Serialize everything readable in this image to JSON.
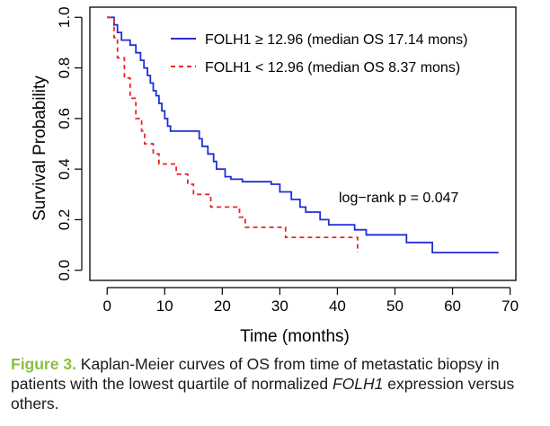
{
  "chart_data": {
    "type": "line",
    "xlabel": "Time (months)",
    "ylabel": "Survival Probability",
    "xlim": [
      -3,
      71
    ],
    "ylim": [
      -0.04,
      1.04
    ],
    "x_ticks": [
      "0",
      "10",
      "20",
      "30",
      "40",
      "50",
      "60",
      "70"
    ],
    "y_ticks": [
      "0.0",
      "0.2",
      "0.4",
      "0.6",
      "0.8",
      "1.0"
    ],
    "grid": false,
    "legend_position": "top-right",
    "annotation": "log−rank p = 0.047",
    "series": [
      {
        "name": "FOLH1 ≥ 12.96 (median OS 17.14 mons)",
        "color": "#1f2fd6",
        "style": "solid",
        "points": [
          [
            0,
            1.0
          ],
          [
            1.2,
            1.0
          ],
          [
            1.2,
            0.97
          ],
          [
            1.8,
            0.97
          ],
          [
            1.8,
            0.94
          ],
          [
            2.5,
            0.94
          ],
          [
            2.5,
            0.91
          ],
          [
            4,
            0.91
          ],
          [
            4,
            0.89
          ],
          [
            5,
            0.89
          ],
          [
            5,
            0.86
          ],
          [
            5.8,
            0.86
          ],
          [
            5.8,
            0.83
          ],
          [
            6.4,
            0.83
          ],
          [
            6.4,
            0.8
          ],
          [
            7,
            0.8
          ],
          [
            7,
            0.77
          ],
          [
            7.5,
            0.77
          ],
          [
            7.5,
            0.74
          ],
          [
            8,
            0.74
          ],
          [
            8,
            0.71
          ],
          [
            8.5,
            0.71
          ],
          [
            8.5,
            0.69
          ],
          [
            9,
            0.69
          ],
          [
            9,
            0.66
          ],
          [
            9.5,
            0.66
          ],
          [
            9.5,
            0.63
          ],
          [
            10,
            0.63
          ],
          [
            10,
            0.6
          ],
          [
            10.5,
            0.6
          ],
          [
            10.5,
            0.57
          ],
          [
            11,
            0.57
          ],
          [
            11,
            0.55
          ],
          [
            16,
            0.55
          ],
          [
            16,
            0.52
          ],
          [
            16.5,
            0.52
          ],
          [
            16.5,
            0.49
          ],
          [
            17.5,
            0.49
          ],
          [
            17.5,
            0.46
          ],
          [
            18.5,
            0.46
          ],
          [
            18.5,
            0.43
          ],
          [
            19,
            0.43
          ],
          [
            19,
            0.4
          ],
          [
            20.5,
            0.4
          ],
          [
            20.5,
            0.37
          ],
          [
            21.5,
            0.37
          ],
          [
            21.5,
            0.36
          ],
          [
            23.5,
            0.36
          ],
          [
            23.5,
            0.35
          ],
          [
            28.5,
            0.35
          ],
          [
            28.5,
            0.34
          ],
          [
            30,
            0.34
          ],
          [
            30,
            0.31
          ],
          [
            32,
            0.31
          ],
          [
            32,
            0.28
          ],
          [
            33.5,
            0.28
          ],
          [
            33.5,
            0.25
          ],
          [
            34.5,
            0.25
          ],
          [
            34.5,
            0.23
          ],
          [
            37,
            0.23
          ],
          [
            37,
            0.2
          ],
          [
            38.5,
            0.2
          ],
          [
            38.5,
            0.18
          ],
          [
            43,
            0.18
          ],
          [
            43,
            0.16
          ],
          [
            45,
            0.16
          ],
          [
            45,
            0.14
          ],
          [
            52,
            0.14
          ],
          [
            52,
            0.11
          ],
          [
            56.5,
            0.11
          ],
          [
            56.5,
            0.07
          ],
          [
            68,
            0.07
          ]
        ]
      },
      {
        "name": "FOLH1 < 12.96 (median OS 8.37 mons)",
        "color": "#e8262a",
        "style": "dashed",
        "points": [
          [
            0,
            1.0
          ],
          [
            1.2,
            1.0
          ],
          [
            1.2,
            0.92
          ],
          [
            1.8,
            0.92
          ],
          [
            1.8,
            0.84
          ],
          [
            3,
            0.84
          ],
          [
            3,
            0.76
          ],
          [
            4,
            0.76
          ],
          [
            4,
            0.68
          ],
          [
            5,
            0.68
          ],
          [
            5,
            0.6
          ],
          [
            6,
            0.6
          ],
          [
            6,
            0.55
          ],
          [
            6.5,
            0.55
          ],
          [
            6.5,
            0.5
          ],
          [
            8,
            0.5
          ],
          [
            8,
            0.46
          ],
          [
            9,
            0.46
          ],
          [
            9,
            0.42
          ],
          [
            12,
            0.42
          ],
          [
            12,
            0.38
          ],
          [
            14,
            0.38
          ],
          [
            14,
            0.34
          ],
          [
            15,
            0.34
          ],
          [
            15,
            0.3
          ],
          [
            18,
            0.3
          ],
          [
            18,
            0.25
          ],
          [
            23,
            0.25
          ],
          [
            23,
            0.21
          ],
          [
            24,
            0.21
          ],
          [
            24,
            0.17
          ],
          [
            31,
            0.17
          ],
          [
            31,
            0.13
          ],
          [
            43.5,
            0.13
          ],
          [
            43.5,
            0.07
          ]
        ]
      }
    ]
  },
  "caption": {
    "figure_label": "Figure 3.",
    "text_before": " Kaplan-Meier curves of OS from time of metastatic biopsy in patients with the lowest quartile of normalized ",
    "gene": "FOLH1",
    "text_after": " expression versus others."
  }
}
